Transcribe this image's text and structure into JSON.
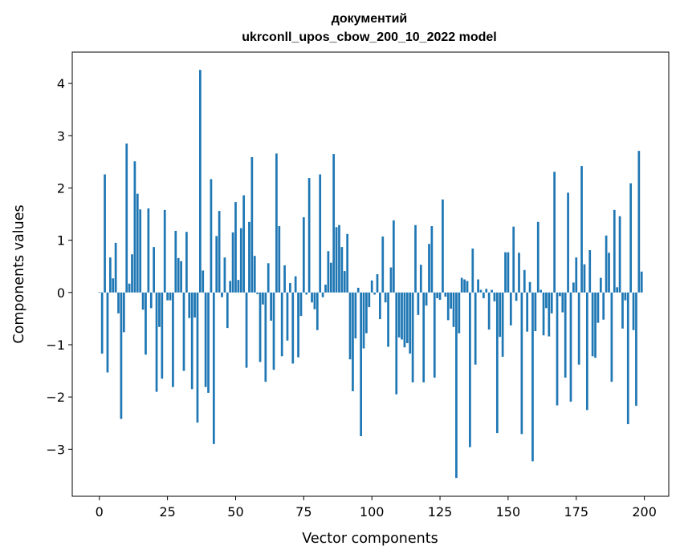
{
  "chart_data": {
    "type": "bar",
    "title": [
      "документий",
      "ukrconll_upos_cbow_200_10_2022 model"
    ],
    "xlabel": "Vector components",
    "ylabel": "Components values",
    "xlim": [
      -9.95,
      208.95
    ],
    "ylim": [
      -3.9,
      4.6
    ],
    "xticks": [
      0,
      25,
      50,
      75,
      100,
      125,
      150,
      175,
      200
    ],
    "yticks": [
      -3,
      -2,
      -1,
      0,
      1,
      2,
      3,
      4
    ],
    "grid": false,
    "bar_color": "#1f77b4",
    "x": [
      0,
      1,
      2,
      3,
      4,
      5,
      6,
      7,
      8,
      9,
      10,
      11,
      12,
      13,
      14,
      15,
      16,
      17,
      18,
      19,
      20,
      21,
      22,
      23,
      24,
      25,
      26,
      27,
      28,
      29,
      30,
      31,
      32,
      33,
      34,
      35,
      36,
      37,
      38,
      39,
      40,
      41,
      42,
      43,
      44,
      45,
      46,
      47,
      48,
      49,
      50,
      51,
      52,
      53,
      54,
      55,
      56,
      57,
      58,
      59,
      60,
      61,
      62,
      63,
      64,
      65,
      66,
      67,
      68,
      69,
      70,
      71,
      72,
      73,
      74,
      75,
      76,
      77,
      78,
      79,
      80,
      81,
      82,
      83,
      84,
      85,
      86,
      87,
      88,
      89,
      90,
      91,
      92,
      93,
      94,
      95,
      96,
      97,
      98,
      99,
      100,
      101,
      102,
      103,
      104,
      105,
      106,
      107,
      108,
      109,
      110,
      111,
      112,
      113,
      114,
      115,
      116,
      117,
      118,
      119,
      120,
      121,
      122,
      123,
      124,
      125,
      126,
      127,
      128,
      129,
      130,
      131,
      132,
      133,
      134,
      135,
      136,
      137,
      138,
      139,
      140,
      141,
      142,
      143,
      144,
      145,
      146,
      147,
      148,
      149,
      150,
      151,
      152,
      153,
      154,
      155,
      156,
      157,
      158,
      159,
      160,
      161,
      162,
      163,
      164,
      165,
      166,
      167,
      168,
      169,
      170,
      171,
      172,
      173,
      174,
      175,
      176,
      177,
      178,
      179,
      180,
      181,
      182,
      183,
      184,
      185,
      186,
      187,
      188,
      189,
      190,
      191,
      192,
      193,
      194,
      195,
      196,
      197,
      198,
      199
    ],
    "values": [
      0.01,
      -1.17,
      2.26,
      -1.53,
      0.67,
      0.27,
      0.95,
      -0.4,
      -2.42,
      -0.76,
      2.85,
      0.17,
      0.73,
      2.51,
      1.89,
      1.59,
      -0.33,
      -1.19,
      1.61,
      -0.3,
      0.87,
      -1.9,
      -0.66,
      -1.65,
      1.58,
      -0.15,
      -0.15,
      -1.81,
      1.18,
      0.66,
      0.6,
      -1.5,
      1.16,
      -0.49,
      -1.85,
      -0.48,
      -2.49,
      4.26,
      0.42,
      -1.81,
      -1.92,
      2.17,
      -2.9,
      1.08,
      1.56,
      -0.09,
      0.67,
      -0.68,
      0.22,
      1.15,
      1.73,
      0.24,
      1.23,
      1.86,
      -1.44,
      1.35,
      2.59,
      0.7,
      -0.03,
      -1.33,
      -0.23,
      -1.71,
      0.56,
      -0.54,
      -1.48,
      2.66,
      1.27,
      -1.22,
      0.52,
      -0.92,
      0.18,
      -1.36,
      0.31,
      -1.24,
      -0.45,
      1.44,
      -0.04,
      2.19,
      -0.19,
      -0.32,
      -0.72,
      2.26,
      -0.09,
      0.15,
      0.79,
      0.57,
      2.65,
      1.25,
      1.29,
      0.87,
      0.41,
      1.12,
      -1.28,
      -1.89,
      -0.88,
      0.09,
      -2.75,
      -1.07,
      -0.78,
      -0.28,
      0.23,
      -0.04,
      0.35,
      -0.51,
      1.07,
      -0.19,
      -1.04,
      0.48,
      1.38,
      -1.95,
      -0.86,
      -0.9,
      -1.05,
      -0.97,
      -1.17,
      -1.72,
      1.29,
      -0.43,
      0.53,
      -1.72,
      -0.25,
      0.93,
      1.27,
      -1.63,
      -0.11,
      -0.14,
      1.78,
      -0.08,
      -0.53,
      -0.31,
      -0.66,
      -3.55,
      -0.78,
      0.28,
      0.25,
      0.22,
      -2.96,
      0.84,
      -1.38,
      0.25,
      0.05,
      -0.11,
      0.07,
      -0.71,
      0.05,
      -0.17,
      -2.69,
      -0.85,
      -1.23,
      0.77,
      0.77,
      -0.63,
      1.26,
      -0.16,
      0.76,
      -2.71,
      0.43,
      -0.75,
      0.2,
      -3.23,
      -0.74,
      1.35,
      0.05,
      -0.82,
      -0.3,
      -0.84,
      -0.4,
      2.31,
      -2.16,
      -0.07,
      -0.38,
      -1.63,
      1.91,
      -2.09,
      0.19,
      0.67,
      -1.38,
      2.42,
      0.54,
      -2.25,
      0.81,
      -1.22,
      -1.25,
      -0.58,
      0.28,
      -0.52,
      1.09,
      0.76,
      -1.71,
      1.58,
      0.1,
      1.46,
      -0.69,
      -0.15,
      -2.52,
      2.09,
      -0.72,
      -2.17,
      2.71,
      0.4
    ]
  }
}
